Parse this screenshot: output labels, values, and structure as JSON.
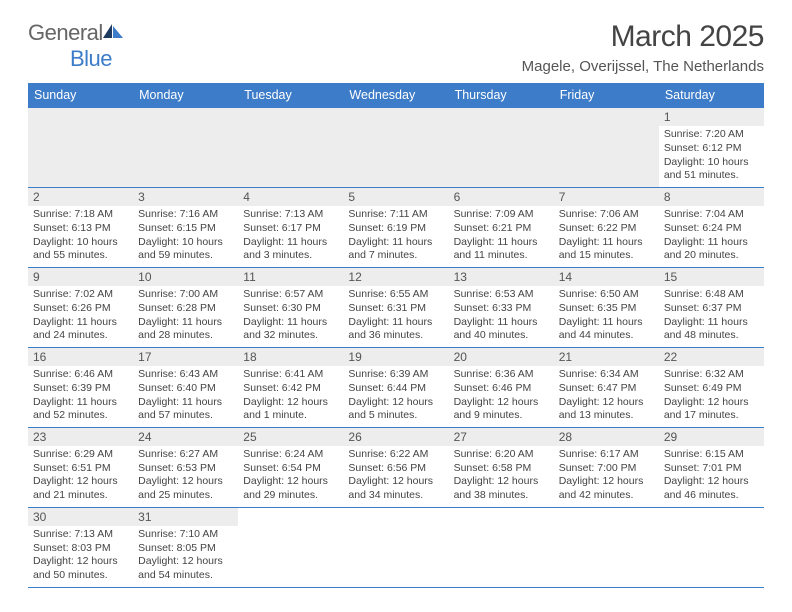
{
  "logo": {
    "text1": "General",
    "text2": "Blue"
  },
  "title": "March 2025",
  "location": "Magele, Overijssel, The Netherlands",
  "colors": {
    "header_bg": "#3d7cc9",
    "header_fg": "#ffffff",
    "rule": "#3d7cc9",
    "daynum_bg": "#ededed",
    "text": "#444444"
  },
  "weekdays": [
    "Sunday",
    "Monday",
    "Tuesday",
    "Wednesday",
    "Thursday",
    "Friday",
    "Saturday"
  ],
  "weeks": [
    [
      null,
      null,
      null,
      null,
      null,
      null,
      {
        "n": "1",
        "sr": "7:20 AM",
        "ss": "6:12 PM",
        "dl": "10 hours and 51 minutes."
      }
    ],
    [
      {
        "n": "2",
        "sr": "7:18 AM",
        "ss": "6:13 PM",
        "dl": "10 hours and 55 minutes."
      },
      {
        "n": "3",
        "sr": "7:16 AM",
        "ss": "6:15 PM",
        "dl": "10 hours and 59 minutes."
      },
      {
        "n": "4",
        "sr": "7:13 AM",
        "ss": "6:17 PM",
        "dl": "11 hours and 3 minutes."
      },
      {
        "n": "5",
        "sr": "7:11 AM",
        "ss": "6:19 PM",
        "dl": "11 hours and 7 minutes."
      },
      {
        "n": "6",
        "sr": "7:09 AM",
        "ss": "6:21 PM",
        "dl": "11 hours and 11 minutes."
      },
      {
        "n": "7",
        "sr": "7:06 AM",
        "ss": "6:22 PM",
        "dl": "11 hours and 15 minutes."
      },
      {
        "n": "8",
        "sr": "7:04 AM",
        "ss": "6:24 PM",
        "dl": "11 hours and 20 minutes."
      }
    ],
    [
      {
        "n": "9",
        "sr": "7:02 AM",
        "ss": "6:26 PM",
        "dl": "11 hours and 24 minutes."
      },
      {
        "n": "10",
        "sr": "7:00 AM",
        "ss": "6:28 PM",
        "dl": "11 hours and 28 minutes."
      },
      {
        "n": "11",
        "sr": "6:57 AM",
        "ss": "6:30 PM",
        "dl": "11 hours and 32 minutes."
      },
      {
        "n": "12",
        "sr": "6:55 AM",
        "ss": "6:31 PM",
        "dl": "11 hours and 36 minutes."
      },
      {
        "n": "13",
        "sr": "6:53 AM",
        "ss": "6:33 PM",
        "dl": "11 hours and 40 minutes."
      },
      {
        "n": "14",
        "sr": "6:50 AM",
        "ss": "6:35 PM",
        "dl": "11 hours and 44 minutes."
      },
      {
        "n": "15",
        "sr": "6:48 AM",
        "ss": "6:37 PM",
        "dl": "11 hours and 48 minutes."
      }
    ],
    [
      {
        "n": "16",
        "sr": "6:46 AM",
        "ss": "6:39 PM",
        "dl": "11 hours and 52 minutes."
      },
      {
        "n": "17",
        "sr": "6:43 AM",
        "ss": "6:40 PM",
        "dl": "11 hours and 57 minutes."
      },
      {
        "n": "18",
        "sr": "6:41 AM",
        "ss": "6:42 PM",
        "dl": "12 hours and 1 minute."
      },
      {
        "n": "19",
        "sr": "6:39 AM",
        "ss": "6:44 PM",
        "dl": "12 hours and 5 minutes."
      },
      {
        "n": "20",
        "sr": "6:36 AM",
        "ss": "6:46 PM",
        "dl": "12 hours and 9 minutes."
      },
      {
        "n": "21",
        "sr": "6:34 AM",
        "ss": "6:47 PM",
        "dl": "12 hours and 13 minutes."
      },
      {
        "n": "22",
        "sr": "6:32 AM",
        "ss": "6:49 PM",
        "dl": "12 hours and 17 minutes."
      }
    ],
    [
      {
        "n": "23",
        "sr": "6:29 AM",
        "ss": "6:51 PM",
        "dl": "12 hours and 21 minutes."
      },
      {
        "n": "24",
        "sr": "6:27 AM",
        "ss": "6:53 PM",
        "dl": "12 hours and 25 minutes."
      },
      {
        "n": "25",
        "sr": "6:24 AM",
        "ss": "6:54 PM",
        "dl": "12 hours and 29 minutes."
      },
      {
        "n": "26",
        "sr": "6:22 AM",
        "ss": "6:56 PM",
        "dl": "12 hours and 34 minutes."
      },
      {
        "n": "27",
        "sr": "6:20 AM",
        "ss": "6:58 PM",
        "dl": "12 hours and 38 minutes."
      },
      {
        "n": "28",
        "sr": "6:17 AM",
        "ss": "7:00 PM",
        "dl": "12 hours and 42 minutes."
      },
      {
        "n": "29",
        "sr": "6:15 AM",
        "ss": "7:01 PM",
        "dl": "12 hours and 46 minutes."
      }
    ],
    [
      {
        "n": "30",
        "sr": "7:13 AM",
        "ss": "8:03 PM",
        "dl": "12 hours and 50 minutes."
      },
      {
        "n": "31",
        "sr": "7:10 AM",
        "ss": "8:05 PM",
        "dl": "12 hours and 54 minutes."
      },
      null,
      null,
      null,
      null,
      null
    ]
  ],
  "labels": {
    "sunrise": "Sunrise: ",
    "sunset": "Sunset: ",
    "daylight": "Daylight: "
  }
}
